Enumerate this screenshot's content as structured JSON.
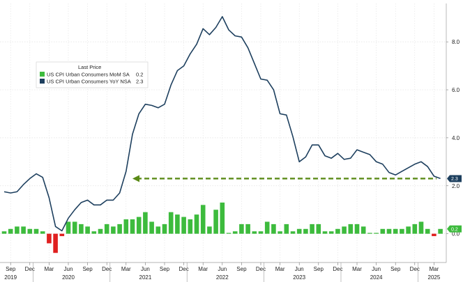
{
  "chart_data": {
    "type": "bar+line",
    "y_ticks": [
      "8.0",
      "6.0",
      "4.0",
      "2.0",
      "0.0"
    ],
    "y_tick_values": [
      8,
      6,
      4,
      2,
      0
    ],
    "ylim": [
      -1.2,
      9.6
    ],
    "legend": {
      "title": "Last Price",
      "entries": [
        {
          "label": "US CPI Urban Consumers MoM SA",
          "last": "0.2",
          "color": "#3dbb3d"
        },
        {
          "label": "US CPI Urban Consumers YoY NSA",
          "last": "2.3",
          "color": "#1d3f5e"
        }
      ]
    },
    "months": [
      "Aug 2019",
      "Sep 2019",
      "Oct 2019",
      "Nov 2019",
      "Dec 2019",
      "Jan 2020",
      "Feb 2020",
      "Mar 2020",
      "Apr 2020",
      "May 2020",
      "Jun 2020",
      "Jul 2020",
      "Aug 2020",
      "Sep 2020",
      "Oct 2020",
      "Nov 2020",
      "Dec 2020",
      "Jan 2021",
      "Feb 2021",
      "Mar 2021",
      "Apr 2021",
      "May 2021",
      "Jun 2021",
      "Jul 2021",
      "Aug 2021",
      "Sep 2021",
      "Oct 2021",
      "Nov 2021",
      "Dec 2021",
      "Jan 2022",
      "Feb 2022",
      "Mar 2022",
      "Apr 2022",
      "May 2022",
      "Jun 2022",
      "Jul 2022",
      "Aug 2022",
      "Sep 2022",
      "Oct 2022",
      "Nov 2022",
      "Dec 2022",
      "Jan 2023",
      "Feb 2023",
      "Mar 2023",
      "Apr 2023",
      "May 2023",
      "Jun 2023",
      "Jul 2023",
      "Aug 2023",
      "Sep 2023",
      "Oct 2023",
      "Nov 2023",
      "Dec 2023",
      "Jan 2024",
      "Feb 2024",
      "Mar 2024",
      "Apr 2024",
      "May 2024",
      "Jun 2024",
      "Jul 2024",
      "Aug 2024",
      "Sep 2024",
      "Oct 2024",
      "Nov 2024",
      "Dec 2024",
      "Jan 2025",
      "Feb 2025",
      "Mar 2025",
      "Apr 2025"
    ],
    "series": [
      {
        "name": "US CPI Urban Consumers YoY NSA",
        "kind": "line",
        "values": [
          1.75,
          1.7,
          1.75,
          2.05,
          2.3,
          2.5,
          2.35,
          1.5,
          0.3,
          0.12,
          0.65,
          1.0,
          1.3,
          1.4,
          1.2,
          1.2,
          1.4,
          1.4,
          1.7,
          2.6,
          4.15,
          5.0,
          5.4,
          5.35,
          5.25,
          5.4,
          6.2,
          6.8,
          7.0,
          7.5,
          7.9,
          8.55,
          8.3,
          8.6,
          9.05,
          8.5,
          8.25,
          8.2,
          7.75,
          7.1,
          6.45,
          6.4,
          6.0,
          5.0,
          4.95,
          4.05,
          3.0,
          3.2,
          3.7,
          3.7,
          3.25,
          3.15,
          3.35,
          3.1,
          3.15,
          3.5,
          3.4,
          3.3,
          3.0,
          2.9,
          2.55,
          2.45,
          2.6,
          2.75,
          2.9,
          3.0,
          2.8,
          2.4,
          2.3
        ]
      },
      {
        "name": "US CPI Urban Consumers MoM SA",
        "kind": "bar",
        "values": [
          0.1,
          0.2,
          0.3,
          0.3,
          0.2,
          0.2,
          0.1,
          -0.4,
          -0.8,
          -0.1,
          0.5,
          0.5,
          0.4,
          0.3,
          0.1,
          0.2,
          0.4,
          0.3,
          0.4,
          0.6,
          0.6,
          0.7,
          0.9,
          0.5,
          0.3,
          0.4,
          0.9,
          0.8,
          0.7,
          0.6,
          0.8,
          1.2,
          0.3,
          1.0,
          1.3,
          0.0,
          0.1,
          0.4,
          0.4,
          0.1,
          0.1,
          0.5,
          0.4,
          0.1,
          0.4,
          0.1,
          0.2,
          0.2,
          0.4,
          0.4,
          0.1,
          0.1,
          0.2,
          0.3,
          0.4,
          0.4,
          0.3,
          0.0,
          0.0,
          0.2,
          0.2,
          0.2,
          0.2,
          0.3,
          0.4,
          0.5,
          0.2,
          -0.1,
          0.2
        ]
      }
    ],
    "annotation": {
      "type": "dashed-arrow",
      "level": 2.3,
      "color": "#5a8a16"
    },
    "last_value_tags": [
      {
        "label": "2.3",
        "value": 2.3,
        "color": "#1d3f5e"
      },
      {
        "label": "0.2",
        "value": 0.2,
        "color": "#3dbb3d"
      }
    ],
    "x_month_ticks": [
      {
        "label": "Sep",
        "i": 1
      },
      {
        "label": "Dec",
        "i": 4
      },
      {
        "label": "Mar",
        "i": 7
      },
      {
        "label": "Jun",
        "i": 10
      },
      {
        "label": "Sep",
        "i": 13
      },
      {
        "label": "Dec",
        "i": 16
      },
      {
        "label": "Mar",
        "i": 19
      },
      {
        "label": "Jun",
        "i": 22
      },
      {
        "label": "Sep",
        "i": 25
      },
      {
        "label": "Dec",
        "i": 28
      },
      {
        "label": "Mar",
        "i": 31
      },
      {
        "label": "Jun",
        "i": 34
      },
      {
        "label": "Sep",
        "i": 37
      },
      {
        "label": "Dec",
        "i": 40
      },
      {
        "label": "Mar",
        "i": 43
      },
      {
        "label": "Jun",
        "i": 46
      },
      {
        "label": "Sep",
        "i": 49
      },
      {
        "label": "Dec",
        "i": 52
      },
      {
        "label": "Mar",
        "i": 55
      },
      {
        "label": "Jun",
        "i": 58
      },
      {
        "label": "Sep",
        "i": 61
      },
      {
        "label": "Dec",
        "i": 64
      },
      {
        "label": "Mar",
        "i": 67
      }
    ],
    "x_year_ticks": [
      {
        "label": "2019",
        "i": 1
      },
      {
        "label": "2020",
        "i": 10
      },
      {
        "label": "2021",
        "i": 22
      },
      {
        "label": "2022",
        "i": 34
      },
      {
        "label": "2023",
        "i": 46
      },
      {
        "label": "2024",
        "i": 58
      },
      {
        "label": "2025",
        "i": 67
      }
    ],
    "grid": true,
    "legend_position": "top-left"
  }
}
